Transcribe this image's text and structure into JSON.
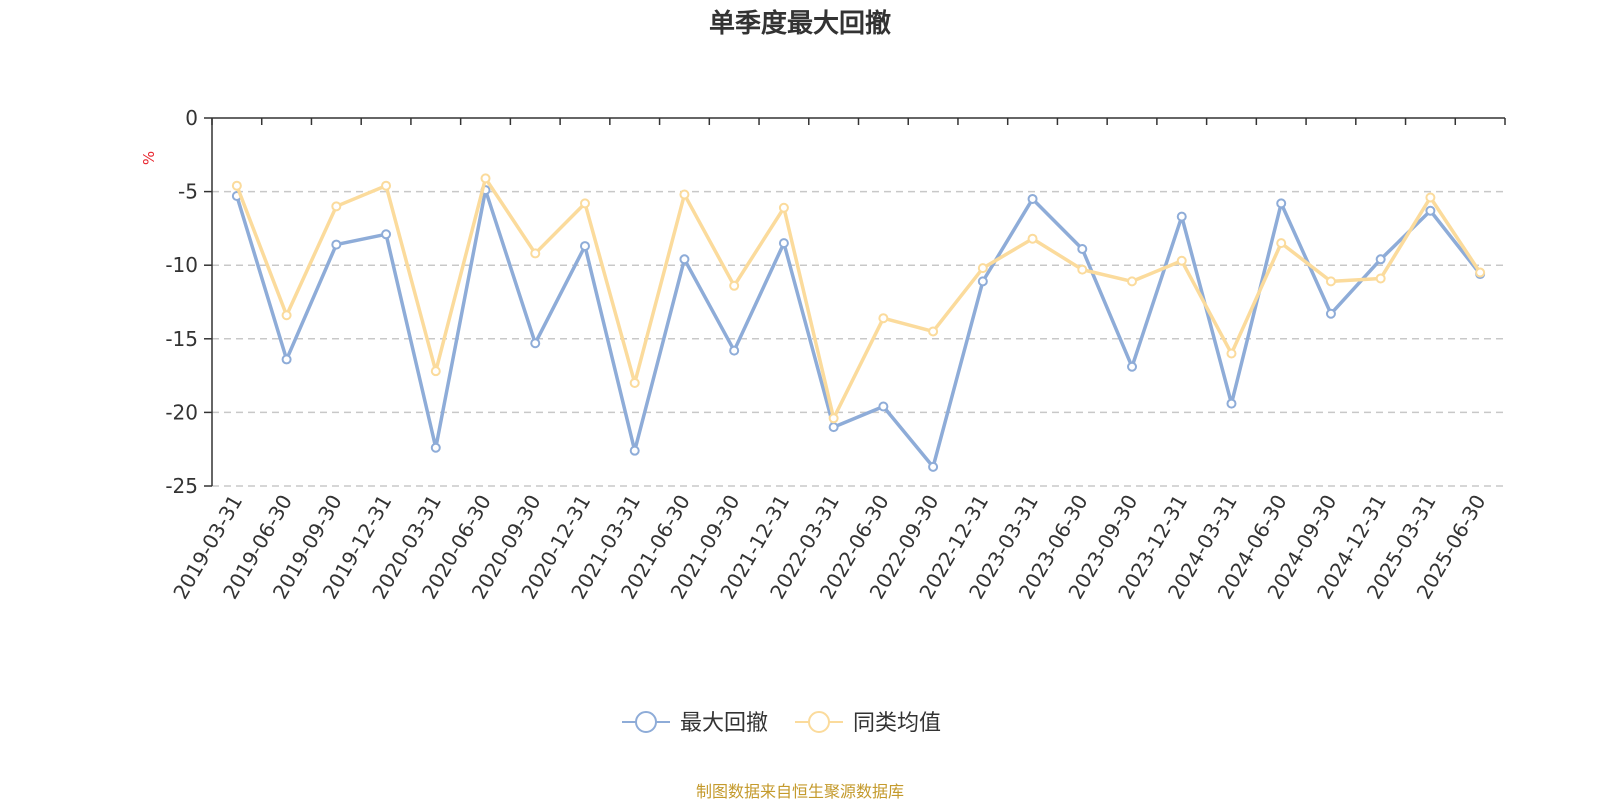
{
  "chart_data": {
    "type": "line",
    "title": "单季度最大回撤",
    "ylabel": "%",
    "xlabel": "",
    "ylim": [
      -25,
      0
    ],
    "yticks": [
      "0",
      "-5",
      "-10",
      "-15",
      "-20",
      "-25"
    ],
    "ytick_values": [
      0,
      -5,
      -10,
      -15,
      -20,
      -25
    ],
    "grid": true,
    "legend_position": "bottom-center",
    "categories": [
      "2019-03-31",
      "2019-06-30",
      "2019-09-30",
      "2019-12-31",
      "2020-03-31",
      "2020-06-30",
      "2020-09-30",
      "2020-12-31",
      "2021-03-31",
      "2021-06-30",
      "2021-09-30",
      "2021-12-31",
      "2022-03-31",
      "2022-06-30",
      "2022-09-30",
      "2022-12-31",
      "2023-03-31",
      "2023-06-30",
      "2023-09-30",
      "2023-12-31",
      "2024-03-31",
      "2024-06-30",
      "2024-09-30",
      "2024-12-31",
      "2025-03-31",
      "2025-06-30"
    ],
    "series": [
      {
        "name": "最大回撤",
        "color": "#8eacd8",
        "values": [
          -5.3,
          -16.4,
          -8.6,
          -7.9,
          -22.4,
          -4.9,
          -15.3,
          -8.7,
          -22.6,
          -9.6,
          -15.8,
          -8.5,
          -21.0,
          -19.6,
          -23.7,
          -11.1,
          -5.5,
          -8.9,
          -16.9,
          -6.7,
          -19.4,
          -5.8,
          -13.3,
          -9.6,
          -6.3,
          -10.6
        ]
      },
      {
        "name": "同类均值",
        "color": "#fbdb9c",
        "values": [
          -4.6,
          -13.4,
          -6.0,
          -4.6,
          -17.2,
          -4.1,
          -9.2,
          -5.8,
          -18.0,
          -5.2,
          -11.4,
          -6.1,
          -20.4,
          -13.6,
          -14.5,
          -10.2,
          -8.2,
          -10.3,
          -11.1,
          -9.7,
          -16.0,
          -8.5,
          -11.1,
          -10.9,
          -5.4,
          -10.5
        ]
      }
    ],
    "axis_color": "#333333",
    "grid_color": "#c8c8c8",
    "label_color": "#333333",
    "ylabel_color": "#e8262f"
  },
  "source_note": "制图数据来自恒生聚源数据库"
}
